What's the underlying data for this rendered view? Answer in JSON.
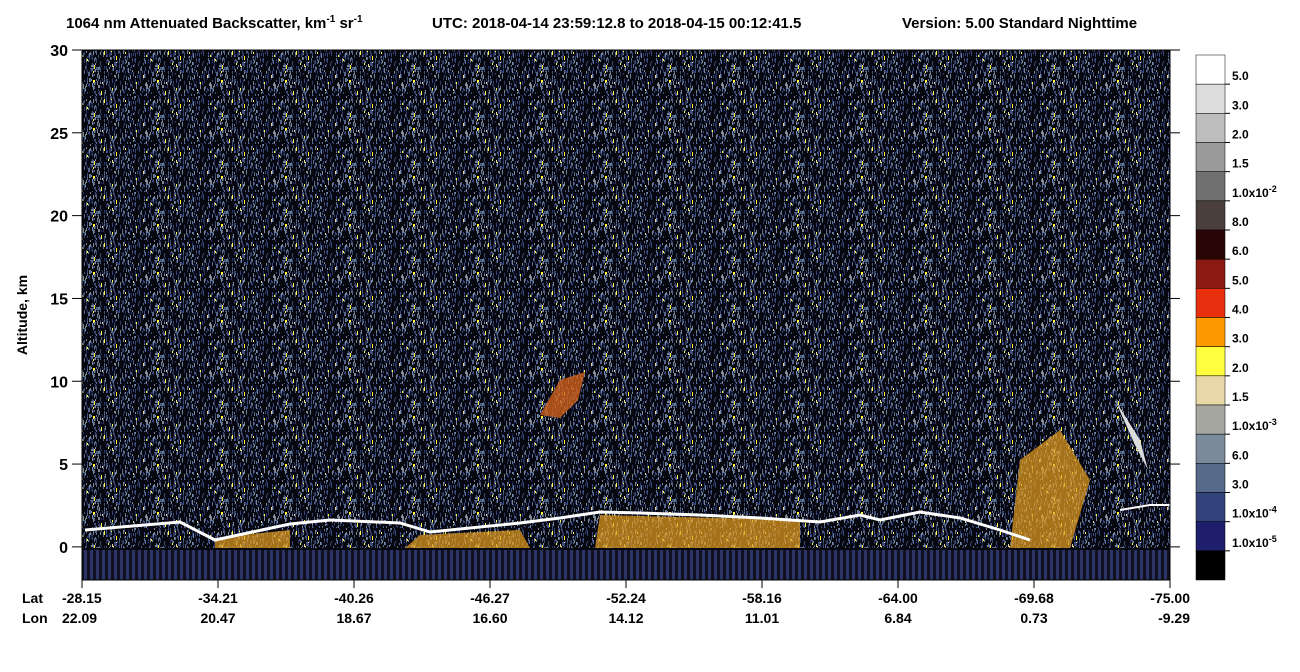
{
  "chart_data": {
    "type": "heatmap",
    "title_parts": [
      "1064 nm Attenuated Backscatter, km",
      "-1",
      " sr",
      "-1"
    ],
    "utc": "UTC:  2018-04-14 23:59:12.8  to  2018-04-15 00:12:41.5",
    "version": "Version: 5.00  Standard  Nighttime",
    "y_label": "Altitude, km",
    "ylim": [
      -2,
      30
    ],
    "yticks": [
      0,
      5,
      10,
      15,
      20,
      25,
      30
    ],
    "x_row_labels": [
      "Lat",
      "Lon"
    ],
    "lat": [
      -28.15,
      -34.21,
      -40.26,
      -46.27,
      -52.24,
      -58.16,
      {
        "value": -64,
        "label": "-64.00"
      },
      -69.68,
      {
        "value": -75,
        "label": "-75.00"
      }
    ],
    "lon": [
      22.09,
      20.47,
      18.67,
      16.6,
      14.12,
      11.01,
      6.84,
      0.73,
      -9.29
    ],
    "lon_labels": [
      "22.09",
      "20.47",
      "18.67",
      "16.60",
      "14.12",
      "11.01",
      "6.84",
      "0.73",
      "-9.29"
    ],
    "colorbar": {
      "labels": [
        {
          "base": "5.0"
        },
        {
          "base": "3.0"
        },
        {
          "base": "2.0"
        },
        {
          "base": "1.5"
        },
        {
          "base": "1.0x10",
          "exp": "-2"
        },
        {
          "base": "8.0"
        },
        {
          "base": "6.0"
        },
        {
          "base": "5.0"
        },
        {
          "base": "4.0"
        },
        {
          "base": "3.0"
        },
        {
          "base": "2.0"
        },
        {
          "base": "1.5"
        },
        {
          "base": "1.0x10",
          "exp": "-3"
        },
        {
          "base": "6.0"
        },
        {
          "base": "3.0"
        },
        {
          "base": "1.0x10",
          "exp": "-4"
        },
        {
          "base": "1.0x10",
          "exp": "-5"
        }
      ],
      "colors": [
        "#ffffff",
        "#dcdcdc",
        "#bdbdbd",
        "#9a9a9a",
        "#707070",
        "#4a3f3c",
        "#2a0505",
        "#8b1a12",
        "#e8300f",
        "#ff9900",
        "#ffff40",
        "#e8d8a8",
        "#a6a8a0",
        "#7a8a98",
        "#56698a",
        "#32427a",
        "#1e1e6c",
        "#000000"
      ]
    }
  }
}
